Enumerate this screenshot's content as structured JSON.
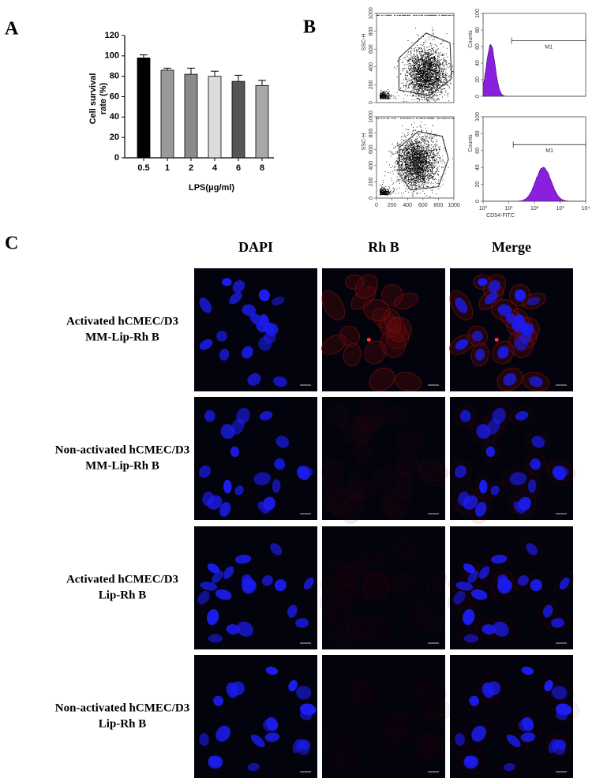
{
  "figure_labels": {
    "a": "A",
    "b": "B",
    "c": "C"
  },
  "chart_data": [
    {
      "type": "bar",
      "categories": [
        "0.5",
        "1",
        "2",
        "4",
        "6",
        "8"
      ],
      "values": [
        98,
        86,
        82,
        80,
        75,
        71
      ],
      "errors": [
        3,
        2,
        6,
        5,
        6,
        5
      ],
      "colors": [
        "#000000",
        "#9a9a9a",
        "#8a8a8a",
        "#dcdcdc",
        "#555555",
        "#a8a8a8"
      ],
      "ylim": [
        0,
        120
      ],
      "yticks": [
        0,
        20,
        40,
        60,
        80,
        100,
        120
      ],
      "y_label": [
        "Cell survival",
        "rate (%)"
      ],
      "x_label": "LPS(μg/ml)"
    },
    {
      "type": "scatter-density",
      "y_label": "SSC-H",
      "ylim": [
        0,
        1000
      ],
      "yticks": [
        0,
        200,
        400,
        600,
        800,
        1000
      ]
    },
    {
      "type": "scatter-density",
      "y_label": "SSC-H",
      "xlim": [
        0,
        1000
      ],
      "ylim": [
        0,
        1000
      ],
      "xticks": [
        0,
        200,
        400,
        600,
        800,
        1000
      ],
      "yticks": [
        0,
        200,
        400,
        600,
        800,
        1000
      ]
    },
    {
      "type": "flow-histogram",
      "y_label": "Counts",
      "ylim": [
        0,
        100
      ],
      "yticks": [
        0,
        20,
        40,
        60,
        80,
        100
      ],
      "xlim": [
        1,
        10000
      ],
      "log_x": true,
      "gate": {
        "label": "M1",
        "range": [
          13,
          10000
        ]
      }
    },
    {
      "type": "flow-histogram",
      "y_label": "Counts",
      "x_label": "CD54-FITC",
      "ylim": [
        0,
        100
      ],
      "yticks": [
        0,
        20,
        40,
        60,
        80,
        100
      ],
      "xlim": [
        1,
        10000
      ],
      "log_x": true,
      "xticks": [
        {
          "value": 1,
          "label": "10⁰"
        },
        {
          "value": 10,
          "label": "10¹"
        },
        {
          "value": 100,
          "label": "10²"
        },
        {
          "value": 1000,
          "label": "10³"
        },
        {
          "value": 10000,
          "label": "10⁴"
        }
      ],
      "gate": {
        "label": "M1",
        "range": [
          15,
          10000
        ]
      }
    }
  ],
  "microscopy": {
    "columns": [
      "DAPI",
      "Rh B",
      "Merge"
    ],
    "rows": [
      [
        "Activated hCMEC/D3",
        "MM-Lip-Rh B"
      ],
      [
        "Non-activated hCMEC/D3",
        "MM-Lip-Rh B"
      ],
      [
        "Activated hCMEC/D3",
        "Lip-Rh B"
      ],
      [
        "Non-activated hCMEC/D3",
        "Lip-Rh B"
      ]
    ]
  }
}
